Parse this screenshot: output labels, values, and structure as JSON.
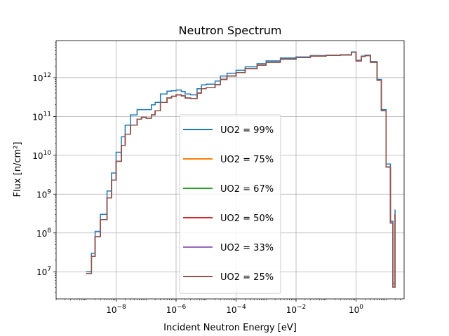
{
  "chart_data": {
    "type": "line",
    "title": "Neutron Spectrum",
    "xlabel": "Incident Neutron Energy [eV]",
    "ylabel": "Flux [n/cm²]",
    "xscale": "log",
    "yscale": "log",
    "xlim": [
      1e-10,
      40
    ],
    "ylim": [
      2000000.0,
      9000000000000.0
    ],
    "grid": true,
    "legend_position": "center",
    "x_ticks": [
      {
        "value": 1e-08,
        "base": "10",
        "exp": "−8"
      },
      {
        "value": 1e-06,
        "base": "10",
        "exp": "−6"
      },
      {
        "value": 0.0001,
        "base": "10",
        "exp": "−4"
      },
      {
        "value": 0.01,
        "base": "10",
        "exp": "−2"
      },
      {
        "value": 1,
        "base": "10",
        "exp": "0"
      }
    ],
    "y_ticks": [
      {
        "value": 10000000.0,
        "base": "10",
        "exp": "7"
      },
      {
        "value": 100000000.0,
        "base": "10",
        "exp": "8"
      },
      {
        "value": 1000000000.0,
        "base": "10",
        "exp": "9"
      },
      {
        "value": 10000000000.0,
        "base": "10",
        "exp": "10"
      },
      {
        "value": 100000000000.0,
        "base": "10",
        "exp": "11"
      },
      {
        "value": 1000000000000.0,
        "base": "10",
        "exp": "12"
      }
    ],
    "x": [
      1e-09,
      1.5e-09,
      2e-09,
      3e-09,
      5e-09,
      7e-09,
      1e-08,
      1.5e-08,
      2e-08,
      3e-08,
      5e-08,
      7e-08,
      1e-07,
      1.5e-07,
      2e-07,
      3e-07,
      5e-07,
      7e-07,
      1e-06,
      1.5e-06,
      2e-06,
      3e-06,
      5e-06,
      7e-06,
      1e-05,
      2e-05,
      3e-05,
      5e-05,
      0.0001,
      0.0002,
      0.0005,
      0.001,
      0.003,
      0.01,
      0.03,
      0.1,
      0.3,
      0.7,
      1,
      1.5,
      2,
      3,
      5,
      7,
      10,
      14,
      17,
      20
    ],
    "series": [
      {
        "name": "UO2 = 99%",
        "color": "#1f77b4",
        "values": [
          10000000.0,
          30000000.0,
          110000000.0,
          300000000.0,
          1200000000.0,
          3500000000.0,
          12000000000.0,
          30000000000.0,
          60000000000.0,
          110000000000.0,
          150000000000.0,
          150000000000.0,
          150000000000.0,
          200000000000.0,
          230000000000.0,
          380000000000.0,
          450000000000.0,
          460000000000.0,
          480000000000.0,
          440000000000.0,
          380000000000.0,
          360000000000.0,
          520000000000.0,
          650000000000.0,
          680000000000.0,
          820000000000.0,
          1100000000000.0,
          1300000000000.0,
          1550000000000.0,
          1900000000000.0,
          2300000000000.0,
          2700000000000.0,
          3200000000000.0,
          3400000000000.0,
          3700000000000.0,
          3800000000000.0,
          3900000000000.0,
          4600000000000.0,
          2800000000000.0,
          3600000000000.0,
          3800000000000.0,
          2600000000000.0,
          900000000000.0,
          150000000000.0,
          6000000000.0,
          200000000.0,
          5000000.0,
          400000000.0
        ]
      },
      {
        "name": "UO2 = 75%",
        "color": "#ff7f0e",
        "values": [
          9000000.0,
          25000000.0,
          80000000.0,
          220000000.0,
          800000000.0,
          2300000000.0,
          7000000000.0,
          18000000000.0,
          35000000000.0,
          60000000000.0,
          85000000000.0,
          95000000000.0,
          90000000000.0,
          110000000000.0,
          140000000000.0,
          230000000000.0,
          300000000000.0,
          330000000000.0,
          360000000000.0,
          340000000000.0,
          300000000000.0,
          290000000000.0,
          400000000000.0,
          520000000000.0,
          550000000000.0,
          660000000000.0,
          900000000000.0,
          1100000000000.0,
          1350000000000.0,
          1700000000000.0,
          2100000000000.0,
          2500000000000.0,
          3000000000000.0,
          3300000000000.0,
          3600000000000.0,
          3750000000000.0,
          3850000000000.0,
          4500000000000.0,
          2700000000000.0,
          3500000000000.0,
          3700000000000.0,
          2500000000000.0,
          850000000000.0,
          140000000000.0,
          5000000000.0,
          180000000.0,
          4000000.0,
          300000000.0
        ]
      },
      {
        "name": "UO2 = 67%",
        "color": "#2ca02c",
        "values": [
          9000000.0,
          25000000.0,
          80000000.0,
          220000000.0,
          800000000.0,
          2300000000.0,
          7000000000.0,
          18000000000.0,
          35000000000.0,
          60000000000.0,
          85000000000.0,
          95000000000.0,
          90000000000.0,
          110000000000.0,
          140000000000.0,
          230000000000.0,
          300000000000.0,
          330000000000.0,
          360000000000.0,
          340000000000.0,
          300000000000.0,
          290000000000.0,
          400000000000.0,
          520000000000.0,
          550000000000.0,
          660000000000.0,
          900000000000.0,
          1100000000000.0,
          1350000000000.0,
          1700000000000.0,
          2100000000000.0,
          2500000000000.0,
          3000000000000.0,
          3300000000000.0,
          3600000000000.0,
          3750000000000.0,
          3850000000000.0,
          4500000000000.0,
          2700000000000.0,
          3500000000000.0,
          3700000000000.0,
          2500000000000.0,
          850000000000.0,
          140000000000.0,
          5000000000.0,
          180000000.0,
          4000000.0,
          300000000.0
        ]
      },
      {
        "name": "UO2 = 50%",
        "color": "#d62728",
        "values": [
          9000000.0,
          25000000.0,
          80000000.0,
          220000000.0,
          800000000.0,
          2300000000.0,
          7000000000.0,
          18000000000.0,
          35000000000.0,
          60000000000.0,
          85000000000.0,
          95000000000.0,
          90000000000.0,
          110000000000.0,
          140000000000.0,
          230000000000.0,
          300000000000.0,
          330000000000.0,
          360000000000.0,
          340000000000.0,
          300000000000.0,
          290000000000.0,
          400000000000.0,
          520000000000.0,
          550000000000.0,
          660000000000.0,
          900000000000.0,
          1100000000000.0,
          1350000000000.0,
          1700000000000.0,
          2100000000000.0,
          2500000000000.0,
          3000000000000.0,
          3300000000000.0,
          3600000000000.0,
          3750000000000.0,
          3850000000000.0,
          4500000000000.0,
          2700000000000.0,
          3500000000000.0,
          3700000000000.0,
          2500000000000.0,
          850000000000.0,
          140000000000.0,
          5000000000.0,
          180000000.0,
          4000000.0,
          300000000.0
        ]
      },
      {
        "name": "UO2 = 33%",
        "color": "#9467bd",
        "values": [
          9000000.0,
          25000000.0,
          80000000.0,
          220000000.0,
          800000000.0,
          2300000000.0,
          7000000000.0,
          18000000000.0,
          35000000000.0,
          60000000000.0,
          85000000000.0,
          95000000000.0,
          90000000000.0,
          110000000000.0,
          140000000000.0,
          230000000000.0,
          300000000000.0,
          330000000000.0,
          360000000000.0,
          340000000000.0,
          300000000000.0,
          290000000000.0,
          400000000000.0,
          520000000000.0,
          550000000000.0,
          660000000000.0,
          900000000000.0,
          1100000000000.0,
          1350000000000.0,
          1700000000000.0,
          2100000000000.0,
          2500000000000.0,
          3000000000000.0,
          3300000000000.0,
          3600000000000.0,
          3750000000000.0,
          3850000000000.0,
          4500000000000.0,
          2700000000000.0,
          3500000000000.0,
          3700000000000.0,
          2500000000000.0,
          850000000000.0,
          140000000000.0,
          5000000000.0,
          180000000.0,
          4000000.0,
          300000000.0
        ]
      },
      {
        "name": "UO2 = 25%",
        "color": "#8c564b",
        "values": [
          9000000.0,
          25000000.0,
          80000000.0,
          220000000.0,
          800000000.0,
          2300000000.0,
          7000000000.0,
          18000000000.0,
          35000000000.0,
          60000000000.0,
          85000000000.0,
          95000000000.0,
          90000000000.0,
          110000000000.0,
          140000000000.0,
          230000000000.0,
          300000000000.0,
          330000000000.0,
          360000000000.0,
          340000000000.0,
          300000000000.0,
          290000000000.0,
          400000000000.0,
          520000000000.0,
          550000000000.0,
          660000000000.0,
          900000000000.0,
          1100000000000.0,
          1350000000000.0,
          1700000000000.0,
          2100000000000.0,
          2500000000000.0,
          3000000000000.0,
          3300000000000.0,
          3600000000000.0,
          3750000000000.0,
          3850000000000.0,
          4500000000000.0,
          2700000000000.0,
          3500000000000.0,
          3700000000000.0,
          2500000000000.0,
          850000000000.0,
          140000000000.0,
          5000000000.0,
          180000000.0,
          4000000.0,
          300000000.0
        ]
      }
    ]
  }
}
